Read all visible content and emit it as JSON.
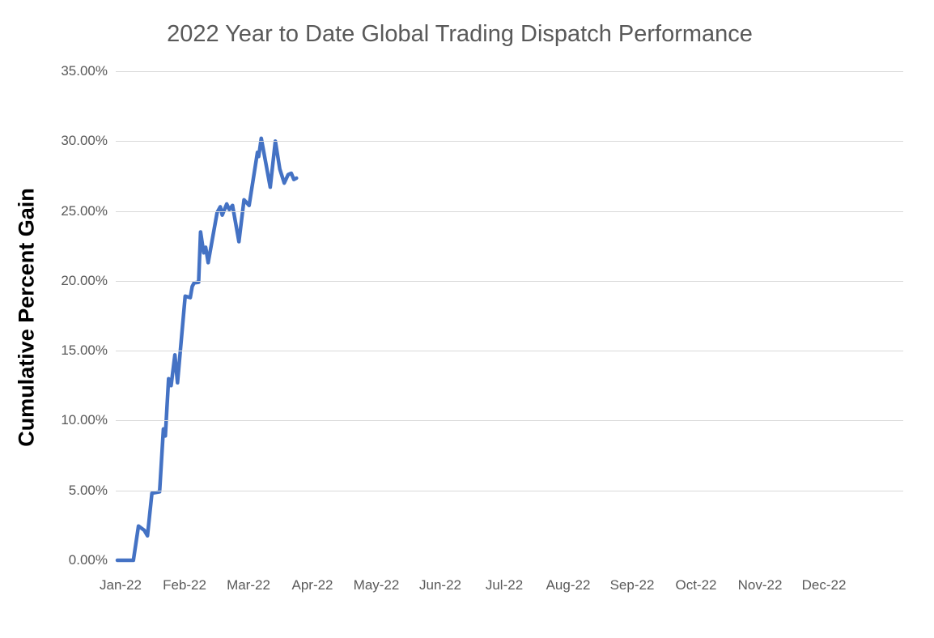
{
  "style": {
    "line_color": "#4472C4",
    "gridline_color": "#D9D9D9",
    "tick_text_color": "#595959",
    "title_text_color": "#595959",
    "y_axis_title_color": "#000000",
    "background": "#ffffff"
  },
  "chart_data": {
    "type": "line",
    "title": "2022 Year to Date Global Trading Dispatch Performance",
    "ylabel": "Cumulative Percent Gain",
    "xlabel": "",
    "legend": "none",
    "grid": "horizontal-only",
    "ylim": [
      0,
      35
    ],
    "y_tick_step_pct": 5,
    "y_tick_labels": [
      "0.00%",
      "5.00%",
      "10.00%",
      "15.00%",
      "20.00%",
      "25.00%",
      "30.00%",
      "35.00%"
    ],
    "x_tick_labels": [
      "Jan-22",
      "Feb-22",
      "Mar-22",
      "Apr-22",
      "May-22",
      "Jun-22",
      "Jul-22",
      "Aug-22",
      "Sep-22",
      "Oct-22",
      "Nov-22",
      "Dec-22"
    ],
    "x_unit_note": "x = months after the Jan-22 tick (0 = Jan-22, 1 = Feb-22, ...); data runs from early January to roughly the fourth week of March 2022",
    "series": [
      {
        "name": "Cumulative percent gain",
        "color": "#4472C4",
        "points": [
          [
            -0.05,
            0.0
          ],
          [
            0.2,
            0.0
          ],
          [
            0.28,
            2.45
          ],
          [
            0.37,
            2.15
          ],
          [
            0.42,
            1.75
          ],
          [
            0.49,
            4.8
          ],
          [
            0.61,
            4.9
          ],
          [
            0.67,
            9.4
          ],
          [
            0.7,
            8.9
          ],
          [
            0.75,
            13.0
          ],
          [
            0.79,
            12.5
          ],
          [
            0.85,
            14.7
          ],
          [
            0.89,
            12.7
          ],
          [
            1.01,
            18.9
          ],
          [
            1.09,
            18.8
          ],
          [
            1.12,
            19.6
          ],
          [
            1.15,
            19.85
          ],
          [
            1.22,
            19.9
          ],
          [
            1.25,
            23.5
          ],
          [
            1.3,
            22.0
          ],
          [
            1.33,
            22.4
          ],
          [
            1.37,
            21.3
          ],
          [
            1.51,
            24.9
          ],
          [
            1.56,
            25.3
          ],
          [
            1.59,
            24.7
          ],
          [
            1.66,
            25.5
          ],
          [
            1.7,
            25.1
          ],
          [
            1.75,
            25.4
          ],
          [
            1.85,
            22.8
          ],
          [
            1.93,
            25.8
          ],
          [
            2.01,
            25.4
          ],
          [
            2.14,
            29.2
          ],
          [
            2.16,
            28.9
          ],
          [
            2.2,
            30.2
          ],
          [
            2.34,
            26.7
          ],
          [
            2.42,
            30.0
          ],
          [
            2.49,
            28.0
          ],
          [
            2.56,
            27.0
          ],
          [
            2.62,
            27.6
          ],
          [
            2.67,
            27.7
          ],
          [
            2.71,
            27.25
          ],
          [
            2.75,
            27.35
          ]
        ]
      }
    ],
    "key_readings": {
      "start_value_pct": 0.0,
      "first_peak_pct": 30.2,
      "second_peak_pct": 30.0,
      "final_value_pct": 27.35
    }
  }
}
